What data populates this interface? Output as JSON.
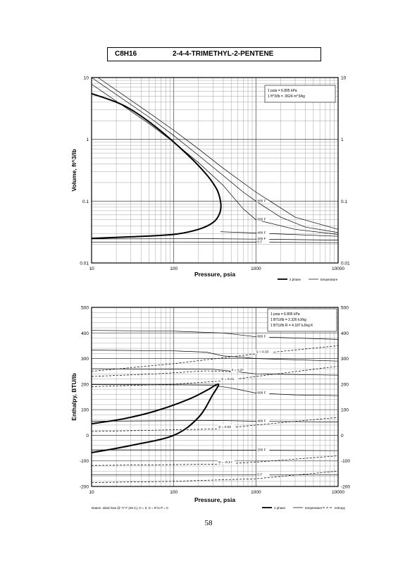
{
  "header": {
    "formula": "C8H16",
    "compound": "2-4-4-TRIMETHYL-2-PENTENE"
  },
  "page_number": "58",
  "chart_data": [
    {
      "type": "line",
      "id": "volume",
      "ylabel": "Volume,  ft^3/lb",
      "xlabel": "Pressure,  psia",
      "x_scale": "log",
      "y_scale": "log",
      "xlim": [
        10,
        10000
      ],
      "ylim": [
        0.01,
        10
      ],
      "x_ticks": [
        10,
        100,
        1000,
        10000
      ],
      "x_tick_labels": [
        "10",
        "100",
        "1000",
        "10000"
      ],
      "y_ticks": [
        0.01,
        0.1,
        1,
        10
      ],
      "y_tick_labels": [
        "0.01",
        "0.1",
        "1",
        "10"
      ],
      "grid": true,
      "conversion_notes": [
        "1 psia  =  6.895 kPa",
        "1 ft^3/lb  =  .0624 m^3/kg"
      ],
      "legend": [
        {
          "label": "2 phase",
          "style": "thick"
        },
        {
          "label": "temperature",
          "style": "thin"
        }
      ],
      "two_phase": [
        [
          10,
          0.025
        ],
        [
          30,
          0.0265
        ],
        [
          100,
          0.029
        ],
        [
          200,
          0.035
        ],
        [
          300,
          0.045
        ],
        [
          355,
          0.06
        ],
        [
          375,
          0.08
        ],
        [
          365,
          0.11
        ],
        [
          330,
          0.16
        ],
        [
          250,
          0.27
        ],
        [
          150,
          0.55
        ],
        [
          60,
          1.6
        ],
        [
          25,
          3.5
        ],
        [
          10,
          5.5
        ]
      ],
      "isotherms": [
        {
          "label": "0 F",
          "points": [
            [
              10,
              0.0218
            ],
            [
              100,
              0.0218
            ],
            [
              1000,
              0.0217
            ],
            [
              10000,
              0.0213
            ]
          ]
        },
        {
          "label": "200 F",
          "points": [
            [
              10,
              0.0245
            ],
            [
              300,
              0.0247
            ],
            [
              1000,
              0.0243
            ],
            [
              10000,
              0.0234
            ]
          ]
        },
        {
          "label": "400 F",
          "points": [
            [
              370,
              0.032
            ],
            [
              700,
              0.031
            ],
            [
              1000,
              0.0305
            ],
            [
              10000,
              0.027
            ]
          ]
        },
        {
          "label": "600 F",
          "points": [
            [
              10,
              7.8
            ],
            [
              50,
              1.8
            ],
            [
              100,
              0.9
            ],
            [
              200,
              0.42
            ],
            [
              400,
              0.18
            ],
            [
              700,
              0.075
            ],
            [
              1000,
              0.05
            ],
            [
              3000,
              0.035
            ],
            [
              10000,
              0.029
            ]
          ]
        },
        {
          "label": "800 F",
          "points": [
            [
              10,
              10
            ],
            [
              50,
              2.3
            ],
            [
              100,
              1.15
            ],
            [
              200,
              0.55
            ],
            [
              400,
              0.26
            ],
            [
              700,
              0.14
            ],
            [
              1000,
              0.1
            ],
            [
              2000,
              0.055
            ],
            [
              4000,
              0.038
            ],
            [
              10000,
              0.031
            ]
          ]
        },
        {
          "label": "",
          "points": [
            [
              12,
              10
            ],
            [
              50,
              2.7
            ],
            [
              100,
              1.4
            ],
            [
              200,
              0.7
            ],
            [
              400,
              0.34
            ],
            [
              1000,
              0.14
            ],
            [
              3000,
              0.055
            ],
            [
              10000,
              0.035
            ]
          ]
        }
      ]
    },
    {
      "type": "line",
      "id": "enthalpy",
      "ylabel": "Enthalpy,  BTU/lb",
      "xlabel": "Pressure,  psia",
      "x_scale": "log",
      "y_scale": "linear",
      "xlim": [
        10,
        10000
      ],
      "ylim": [
        -200,
        500
      ],
      "x_ticks": [
        10,
        100,
        1000,
        10000
      ],
      "x_tick_labels": [
        "10",
        "100",
        "1000",
        "10000"
      ],
      "y_ticks": [
        -200,
        -100,
        0,
        100,
        200,
        300,
        400,
        500
      ],
      "y_tick_labels": [
        "-200",
        "-100",
        "0",
        "100",
        "200",
        "300",
        "400",
        "500"
      ],
      "grid": true,
      "conversion_notes": [
        "1 psia  =  6.895 kPa",
        "1 BTU/lb  =  2.326 kJ/kg",
        "1 BTU/lb R  =  4.187 kJ/kg K"
      ],
      "legend": [
        {
          "label": "2 phase",
          "style": "thick"
        },
        {
          "label": "temperature",
          "style": "thin"
        },
        {
          "label": "entropy",
          "style": "dashed"
        }
      ],
      "footnote": "Datum: Ideal Gas @ 77 F (25 C),  H = 0,  S = R ln P = 0",
      "two_phase": [
        [
          10,
          -68
        ],
        [
          30,
          -40
        ],
        [
          100,
          0
        ],
        [
          200,
          70
        ],
        [
          300,
          160
        ],
        [
          350,
          195
        ],
        [
          330,
          198
        ],
        [
          250,
          175
        ],
        [
          150,
          140
        ],
        [
          60,
          95
        ],
        [
          25,
          65
        ],
        [
          10,
          45
        ]
      ],
      "isotherms": [
        {
          "label": "0 F",
          "points": [
            [
              10,
              -155
            ],
            [
              100,
              -155
            ],
            [
              1000,
              -155
            ],
            [
              10000,
              -155
            ]
          ]
        },
        {
          "label": "200 F",
          "points": [
            [
              10,
              -57
            ],
            [
              100,
              -57
            ],
            [
              1000,
              -58
            ],
            [
              10000,
              -60
            ]
          ]
        },
        {
          "label": "400 F",
          "points": [
            [
              10,
              55
            ],
            [
              350,
              58
            ],
            [
              1000,
              55
            ],
            [
              10000,
              52
            ]
          ]
        },
        {
          "label": "600 F",
          "points": [
            [
              10,
              198
            ],
            [
              100,
              197
            ],
            [
              280,
              196
            ],
            [
              500,
              185
            ],
            [
              1000,
              165
            ],
            [
              3000,
              158
            ],
            [
              10000,
              155
            ]
          ]
        },
        {
          "label": "800 F",
          "points": [
            [
              10,
              410
            ],
            [
              100,
              407
            ],
            [
              400,
              400
            ],
            [
              1000,
              385
            ],
            [
              10000,
              375
            ]
          ]
        },
        {
          "label": "",
          "points": [
            [
              10,
              333
            ],
            [
              100,
              330
            ],
            [
              250,
              325
            ],
            [
              400,
              310
            ],
            [
              700,
              305
            ],
            [
              1000,
              300
            ],
            [
              10000,
              290
            ]
          ]
        },
        {
          "label": "",
          "points": [
            [
              10,
              260
            ],
            [
              300,
              258
            ],
            [
              600,
              248
            ],
            [
              1000,
              240
            ],
            [
              10000,
              235
            ]
          ]
        }
      ],
      "entropy_lines": [
        {
          "label": "S = 0.33",
          "points": [
            [
              10,
              250
            ],
            [
              100,
              280
            ],
            [
              1000,
              318
            ],
            [
              10000,
              350
            ]
          ]
        },
        {
          "label": "S = 0.27",
          "points": [
            [
              10,
              230
            ],
            [
              60,
              240
            ],
            [
              250,
              252
            ],
            [
              500,
              248
            ]
          ]
        },
        {
          "label": "S = 0.21",
          "points": [
            [
              10,
              190
            ],
            [
              100,
              200
            ],
            [
              380,
              212
            ],
            [
              1000,
              230
            ],
            [
              10000,
              270
            ]
          ]
        },
        {
          "label": "S = 0.02",
          "points": [
            [
              10,
              15
            ],
            [
              350,
              25
            ],
            [
              1000,
              40
            ],
            [
              10000,
              70
            ]
          ]
        },
        {
          "label": "S = -0.17",
          "points": [
            [
              10,
              -118
            ],
            [
              350,
              -113
            ],
            [
              1000,
              -105
            ],
            [
              10000,
              -80
            ]
          ]
        },
        {
          "label": "",
          "points": [
            [
              10,
              -185
            ],
            [
              100,
              -180
            ],
            [
              1000,
              -170
            ],
            [
              10000,
              -140
            ]
          ]
        }
      ]
    }
  ]
}
